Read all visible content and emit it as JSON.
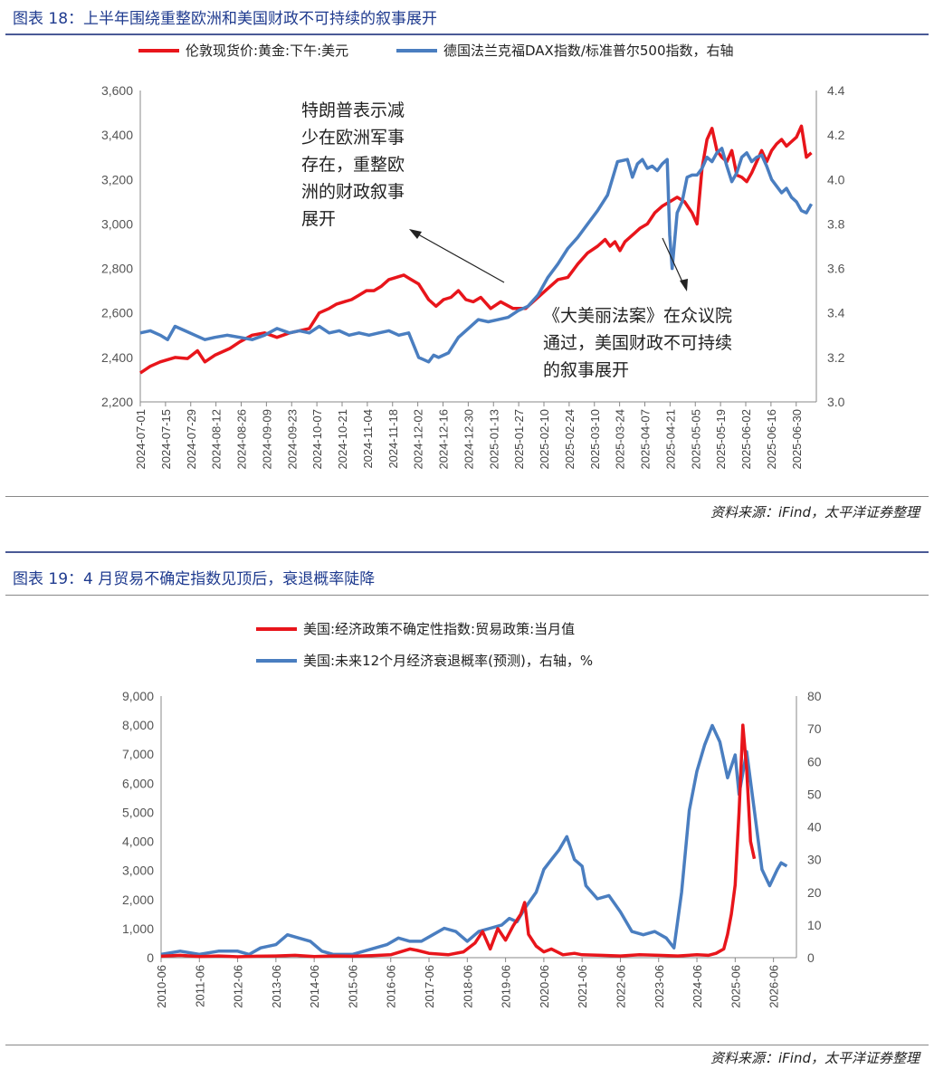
{
  "chart1": {
    "title": "图表 18：上半年围绕重整欧洲和美国财政不可持续的叙事展开",
    "source": "资料来源：iFind，太平洋证券整理",
    "colors": {
      "red": "#e8151b",
      "blue": "#4a7ec0"
    },
    "annotations": [
      {
        "lines": [
          "特朗普表示减",
          "少在欧洲军事",
          "存在，重整欧",
          "洲的财政叙事",
          "展开"
        ]
      },
      {
        "lines": [
          "《大美丽法案》在众议院",
          "通过，美国财政不可持续",
          "的叙事展开"
        ]
      }
    ]
  },
  "chart2": {
    "title": "图表 19：4 月贸易不确定指数见顶后，衰退概率陡降",
    "source": "资料来源：iFind，太平洋证券整理",
    "colors": {
      "red": "#e8151b",
      "blue": "#4a7ec0"
    }
  },
  "chart_data": [
    {
      "type": "line",
      "xlabel": "",
      "x_ticks": [
        "2024-07-01",
        "2024-07-15",
        "2024-07-29",
        "2024-08-12",
        "2024-08-26",
        "2024-09-09",
        "2024-09-23",
        "2024-10-07",
        "2024-10-21",
        "2024-11-04",
        "2024-11-18",
        "2024-12-02",
        "2024-12-16",
        "2024-12-30",
        "2025-01-13",
        "2025-01-27",
        "2025-02-10",
        "2025-02-24",
        "2025-03-10",
        "2025-03-24",
        "2025-04-07",
        "2025-04-21",
        "2025-05-05",
        "2025-05-19",
        "2025-06-02",
        "2025-06-16",
        "2025-06-30"
      ],
      "y_left": {
        "ylim": [
          2200,
          3600
        ],
        "ticks": [
          "2,200",
          "2,400",
          "2,600",
          "2,800",
          "3,000",
          "3,200",
          "3,400",
          "3,600"
        ]
      },
      "y_right": {
        "ylim": [
          3.0,
          4.4
        ],
        "ticks": [
          "3.0",
          "3.2",
          "3.4",
          "3.6",
          "3.8",
          "4.0",
          "4.2",
          "4.4"
        ]
      },
      "series": [
        {
          "name": "伦敦现货价:黄金:下午:美元",
          "axis": "left",
          "x": [
            0,
            4,
            8,
            14,
            19,
            23,
            26,
            30,
            36,
            40,
            45,
            50,
            55,
            60,
            64,
            68,
            72,
            76,
            79,
            82,
            85,
            88,
            91,
            94,
            97,
            100,
            103,
            106,
            109,
            112,
            116,
            119,
            122,
            125,
            128,
            131,
            134,
            137,
            141,
            145,
            150,
            155,
            159,
            163,
            168,
            172,
            176,
            180,
            184,
            187,
            189,
            191,
            193,
            195,
            197,
            199,
            201,
            204,
            207,
            210,
            213,
            216,
            219,
            222,
            224,
            226,
            228,
            230,
            232,
            234,
            236,
            238,
            240,
            242,
            244,
            246,
            248,
            250,
            252,
            254,
            256,
            258,
            260,
            262,
            264,
            266,
            268,
            270
          ],
          "y": [
            2330,
            2360,
            2380,
            2400,
            2395,
            2430,
            2380,
            2410,
            2440,
            2470,
            2500,
            2510,
            2490,
            2510,
            2520,
            2530,
            2600,
            2620,
            2640,
            2650,
            2660,
            2680,
            2700,
            2700,
            2720,
            2750,
            2760,
            2770,
            2750,
            2730,
            2660,
            2630,
            2660,
            2670,
            2700,
            2660,
            2650,
            2670,
            2620,
            2650,
            2620,
            2620,
            2660,
            2700,
            2750,
            2760,
            2820,
            2870,
            2900,
            2930,
            2900,
            2920,
            2880,
            2920,
            2940,
            2960,
            2980,
            3000,
            3050,
            3080,
            3100,
            3120,
            3100,
            3050,
            3000,
            3250,
            3380,
            3430,
            3330,
            3300,
            3280,
            3330,
            3220,
            3210,
            3190,
            3230,
            3280,
            3330,
            3280,
            3330,
            3360,
            3380,
            3350,
            3370,
            3390,
            3440,
            3300,
            3320
          ]
        },
        {
          "name": "德国法兰克福DAX指数/标准普尔500指数，右轴",
          "axis": "right",
          "x": [
            0,
            4,
            8,
            11,
            14,
            18,
            22,
            26,
            30,
            35,
            40,
            45,
            50,
            55,
            60,
            64,
            68,
            72,
            76,
            80,
            84,
            88,
            92,
            96,
            100,
            104,
            108,
            112,
            114,
            116,
            118,
            120,
            124,
            128,
            132,
            136,
            140,
            144,
            148,
            152,
            156,
            160,
            164,
            168,
            172,
            176,
            180,
            184,
            188,
            192,
            196,
            198,
            200,
            202,
            204,
            206,
            208,
            210,
            212,
            213,
            214,
            216,
            218,
            220,
            222,
            224,
            226,
            228,
            230,
            232,
            234,
            236,
            238,
            240,
            242,
            244,
            246,
            248,
            250,
            252,
            254,
            256,
            258,
            260,
            262,
            264,
            266,
            268,
            270
          ],
          "y": [
            3.31,
            3.32,
            3.3,
            3.28,
            3.34,
            3.32,
            3.3,
            3.28,
            3.29,
            3.3,
            3.29,
            3.28,
            3.3,
            3.33,
            3.31,
            3.32,
            3.31,
            3.34,
            3.31,
            3.32,
            3.3,
            3.31,
            3.3,
            3.31,
            3.32,
            3.3,
            3.31,
            3.2,
            3.19,
            3.18,
            3.21,
            3.2,
            3.22,
            3.29,
            3.33,
            3.37,
            3.36,
            3.37,
            3.38,
            3.41,
            3.43,
            3.48,
            3.56,
            3.62,
            3.69,
            3.74,
            3.8,
            3.86,
            3.93,
            4.08,
            4.09,
            4.01,
            4.07,
            4.09,
            4.05,
            4.06,
            4.04,
            4.07,
            4.09,
            3.75,
            3.6,
            3.85,
            3.9,
            4.01,
            4.02,
            4.02,
            4.05,
            4.1,
            4.08,
            4.12,
            4.14,
            4.06,
            3.99,
            4.03,
            4.1,
            4.12,
            4.08,
            4.1,
            4.11,
            4.06,
            4.0,
            3.97,
            3.94,
            3.96,
            3.92,
            3.9,
            3.86,
            3.85,
            3.89
          ]
        }
      ]
    },
    {
      "type": "line",
      "xlabel": "",
      "x_ticks": [
        "2010-06",
        "2011-06",
        "2012-06",
        "2013-06",
        "2014-06",
        "2015-06",
        "2016-06",
        "2017-06",
        "2018-06",
        "2019-06",
        "2020-06",
        "2021-06",
        "2022-06",
        "2023-06",
        "2024-06",
        "2025-06",
        "2026-06"
      ],
      "y_left": {
        "ylim": [
          0,
          9000
        ],
        "ticks": [
          "0",
          "1,000",
          "2,000",
          "3,000",
          "4,000",
          "5,000",
          "6,000",
          "7,000",
          "8,000",
          "9,000"
        ]
      },
      "y_right": {
        "ylim": [
          0,
          80
        ],
        "ticks": [
          "0",
          "10",
          "20",
          "30",
          "40",
          "50",
          "60",
          "70",
          "80"
        ]
      },
      "series": [
        {
          "name": "美国:经济政策不确定性指数:贸易政策:当月值",
          "axis": "left",
          "x": [
            2010.0,
            2010.5,
            2011.0,
            2011.5,
            2012.0,
            2012.5,
            2013.0,
            2013.5,
            2014.0,
            2014.5,
            2015.0,
            2015.5,
            2016.0,
            2016.5,
            2016.7,
            2017.0,
            2017.5,
            2017.9,
            2018.2,
            2018.4,
            2018.6,
            2018.8,
            2019.0,
            2019.2,
            2019.4,
            2019.5,
            2019.6,
            2019.8,
            2020.0,
            2020.2,
            2020.5,
            2020.8,
            2021.0,
            2021.5,
            2022.0,
            2022.5,
            2023.0,
            2023.5,
            2024.0,
            2024.3,
            2024.5,
            2024.7,
            2024.8,
            2024.9,
            2025.0,
            2025.1,
            2025.2,
            2025.3,
            2025.4,
            2025.5
          ],
          "y": [
            50,
            80,
            40,
            60,
            30,
            50,
            60,
            80,
            40,
            60,
            50,
            70,
            100,
            300,
            250,
            150,
            100,
            200,
            500,
            900,
            300,
            1000,
            600,
            1100,
            1500,
            1900,
            800,
            400,
            200,
            300,
            100,
            150,
            100,
            80,
            60,
            100,
            80,
            60,
            100,
            80,
            150,
            300,
            800,
            1500,
            2500,
            5000,
            8000,
            6500,
            4000,
            3400
          ]
        },
        {
          "name": "美国:未来12个月经济衰退概率(预测)，右轴，%",
          "axis": "right",
          "x": [
            2010.0,
            2010.5,
            2011.0,
            2011.5,
            2012.0,
            2012.3,
            2012.6,
            2013.0,
            2013.3,
            2013.6,
            2013.9,
            2014.2,
            2014.5,
            2014.8,
            2015.0,
            2015.3,
            2015.6,
            2015.9,
            2016.2,
            2016.5,
            2016.8,
            2017.1,
            2017.4,
            2017.7,
            2018.0,
            2018.3,
            2018.6,
            2018.9,
            2019.1,
            2019.3,
            2019.5,
            2019.8,
            2020.0,
            2020.2,
            2020.4,
            2020.6,
            2020.8,
            2021.0,
            2021.1,
            2021.4,
            2021.7,
            2022.0,
            2022.3,
            2022.6,
            2022.9,
            2023.2,
            2023.4,
            2023.6,
            2023.8,
            2024.0,
            2024.2,
            2024.4,
            2024.6,
            2024.8,
            2025.0,
            2025.1,
            2025.3,
            2025.5,
            2025.7,
            2025.9,
            2026.1,
            2026.2,
            2026.35
          ],
          "y": [
            1,
            2,
            1,
            2,
            2,
            1,
            3,
            4,
            7,
            6,
            5,
            2,
            1,
            1,
            1,
            2,
            3,
            4,
            6,
            5,
            5,
            7,
            9,
            8,
            5,
            8,
            9,
            10,
            12,
            11,
            15,
            20,
            27,
            30,
            33,
            37,
            30,
            28,
            22,
            18,
            19,
            14,
            8,
            7,
            8,
            6,
            3,
            20,
            45,
            57,
            65,
            71,
            66,
            55,
            62,
            50,
            63,
            45,
            27,
            22,
            27,
            29,
            28
          ]
        }
      ]
    }
  ]
}
